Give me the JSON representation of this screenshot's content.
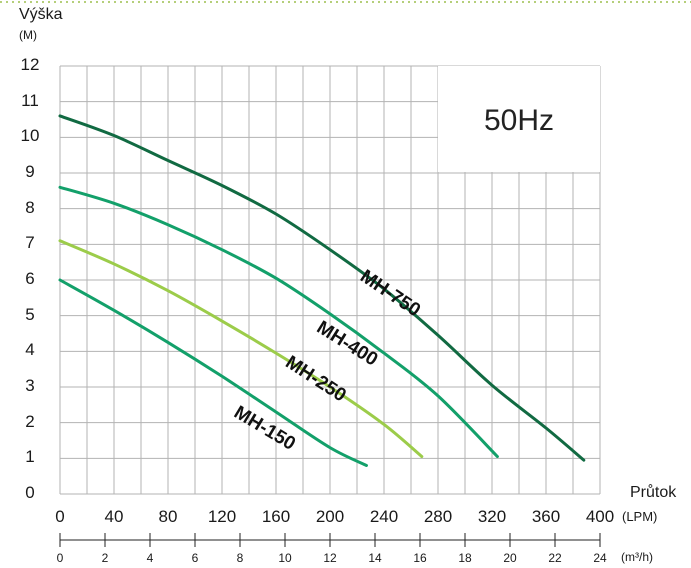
{
  "chart_data": {
    "type": "line",
    "title": "",
    "ylabel": "Výška",
    "yunit": "(M)",
    "xlabel": "Průtok",
    "xunit_primary": "(LPM)",
    "xunit_secondary": "(m³/h)",
    "xlim": [
      0,
      400
    ],
    "ylim": [
      0,
      12
    ],
    "x_ticks": [
      "0",
      "40",
      "80",
      "120",
      "160",
      "200",
      "240",
      "280",
      "320",
      "360",
      "400"
    ],
    "y_ticks": [
      "0",
      "1",
      "2",
      "3",
      "4",
      "5",
      "6",
      "7",
      "8",
      "9",
      "10",
      "11",
      "12"
    ],
    "secondary_ticks": [
      "0",
      "2",
      "4",
      "6",
      "8",
      "10",
      "12",
      "14",
      "16",
      "18",
      "20",
      "22",
      "24"
    ],
    "annotation": "50Hz",
    "grid": true,
    "series": [
      {
        "name": "MH-150",
        "color": "#13a06a",
        "label_angle": 31,
        "x": [
          0,
          40,
          80,
          120,
          160,
          200,
          227
        ],
        "y": [
          6.0,
          5.15,
          4.25,
          3.3,
          2.3,
          1.3,
          0.8
        ]
      },
      {
        "name": "MH-250",
        "color": "#9ccc4a",
        "label_angle": 33,
        "x": [
          0,
          40,
          80,
          120,
          160,
          200,
          240,
          268
        ],
        "y": [
          7.1,
          6.45,
          5.7,
          4.85,
          3.95,
          3.0,
          1.95,
          1.05
        ]
      },
      {
        "name": "MH-400",
        "color": "#13a06a",
        "label_angle": 32,
        "x": [
          0,
          40,
          80,
          120,
          160,
          200,
          240,
          280,
          324
        ],
        "y": [
          8.6,
          8.15,
          7.55,
          6.85,
          6.05,
          5.05,
          3.95,
          2.75,
          1.05
        ]
      },
      {
        "name": "MH-750",
        "color": "#116a42",
        "label_angle": 34,
        "x": [
          0,
          40,
          80,
          120,
          160,
          200,
          240,
          280,
          320,
          360,
          388
        ],
        "y": [
          10.6,
          10.05,
          9.35,
          8.65,
          7.85,
          6.85,
          5.75,
          4.45,
          3.05,
          1.85,
          0.95
        ]
      }
    ]
  }
}
